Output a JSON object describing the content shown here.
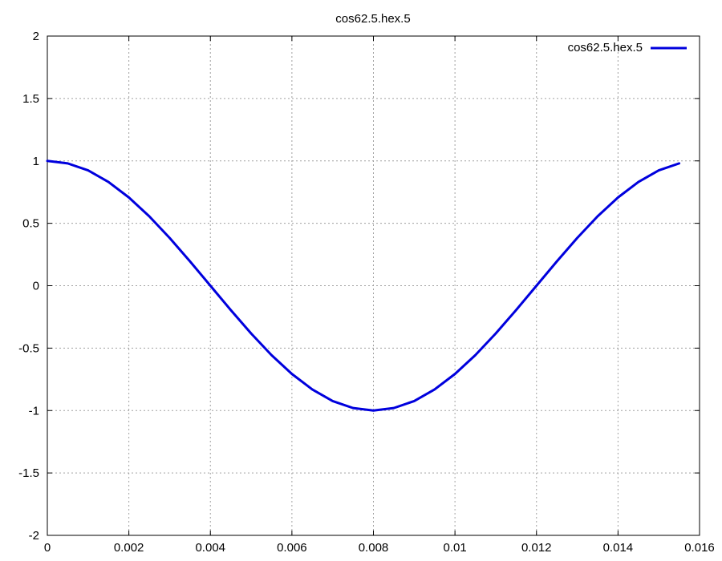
{
  "chart_data": {
    "type": "line",
    "title": "cos62.5.hex.5",
    "xlabel": "",
    "ylabel": "",
    "xlim": [
      0,
      0.016
    ],
    "ylim": [
      -2,
      2
    ],
    "x_ticks": [
      "0",
      "0.002",
      "0.004",
      "0.006",
      "0.008",
      "0.01",
      "0.012",
      "0.014",
      "0.016"
    ],
    "x_tick_values": [
      0,
      0.002,
      0.004,
      0.006,
      0.008,
      0.01,
      0.012,
      0.014,
      0.016
    ],
    "y_ticks": [
      "2",
      "1.5",
      "1",
      "0.5",
      "0",
      "-0.5",
      "-1",
      "-1.5",
      "-2"
    ],
    "y_tick_values": [
      2,
      1.5,
      1,
      0.5,
      0,
      -0.5,
      -1,
      -1.5,
      -2
    ],
    "grid": true,
    "legend_position": "top-right",
    "series": [
      {
        "name": "cos62.5.hex.5",
        "color": "#0000dd",
        "x": [
          0,
          0.0005,
          0.001,
          0.0015,
          0.002,
          0.0025,
          0.003,
          0.0035,
          0.004,
          0.0045,
          0.005,
          0.0055,
          0.006,
          0.0065,
          0.007,
          0.0075,
          0.008,
          0.0085,
          0.009,
          0.0095,
          0.01,
          0.0105,
          0.011,
          0.0115,
          0.012,
          0.0125,
          0.013,
          0.0135,
          0.014,
          0.0145,
          0.015,
          0.0155
        ],
        "values": [
          1.0,
          0.98,
          0.924,
          0.831,
          0.707,
          0.556,
          0.383,
          0.195,
          0.0,
          -0.195,
          -0.383,
          -0.556,
          -0.707,
          -0.831,
          -0.924,
          -0.98,
          -1.0,
          -0.98,
          -0.924,
          -0.831,
          -0.707,
          -0.556,
          -0.383,
          -0.195,
          0.0,
          0.195,
          0.383,
          0.556,
          0.707,
          0.831,
          0.924,
          0.98
        ]
      }
    ]
  }
}
